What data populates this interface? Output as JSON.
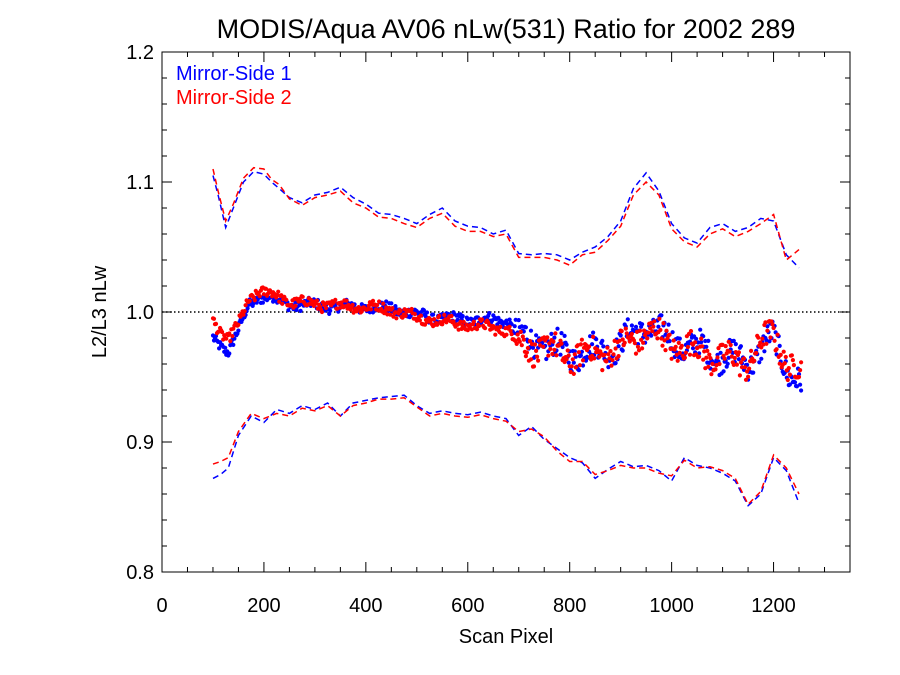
{
  "chart_data": {
    "type": "line",
    "title": "MODIS/Aqua AV06 nLw(531) Ratio for 2002 289",
    "xlabel": "Scan Pixel",
    "ylabel": "L2/L3 nLw",
    "xlim": [
      0,
      1350
    ],
    "ylim": [
      0.8,
      1.2
    ],
    "x_ticks": [
      0,
      200,
      400,
      600,
      800,
      1000,
      1200
    ],
    "y_ticks": [
      0.8,
      0.9,
      1.0,
      1.1,
      1.2
    ],
    "reference_line": 1.0,
    "legend_position": "top-left",
    "colors": {
      "ms1": "#0000ff",
      "ms2": "#ff0000",
      "reference": "#000000"
    },
    "series": [
      {
        "name": "Mirror-Side 1",
        "color": "#0000ff",
        "mean_x": [
          100,
          115,
          130,
          150,
          170,
          190,
          200,
          220,
          250,
          300,
          350,
          400,
          450,
          500,
          550,
          600,
          650,
          680,
          700,
          750,
          800,
          850,
          900,
          950,
          1000,
          1050,
          1100,
          1150,
          1200,
          1230,
          1255
        ],
        "mean_y": [
          0.98,
          0.975,
          0.97,
          0.985,
          1.005,
          1.012,
          1.012,
          1.01,
          1.006,
          1.005,
          1.004,
          1.004,
          1.003,
          0.998,
          0.995,
          0.994,
          0.994,
          0.993,
          0.98,
          0.975,
          0.968,
          0.97,
          0.975,
          0.99,
          0.978,
          0.972,
          0.966,
          0.962,
          0.98,
          0.955,
          0.942
        ],
        "upper_x": [
          100,
          110,
          125,
          140,
          160,
          180,
          200,
          215,
          230,
          250,
          275,
          300,
          325,
          350,
          375,
          400,
          425,
          450,
          475,
          500,
          525,
          550,
          575,
          600,
          625,
          650,
          675,
          700,
          725,
          750,
          775,
          800,
          825,
          850,
          875,
          900,
          925,
          950,
          975,
          1000,
          1025,
          1050,
          1075,
          1100,
          1125,
          1150,
          1175,
          1200,
          1225,
          1250
        ],
        "upper_y": [
          1.105,
          1.09,
          1.065,
          1.08,
          1.1,
          1.108,
          1.106,
          1.1,
          1.095,
          1.088,
          1.084,
          1.09,
          1.092,
          1.096,
          1.088,
          1.083,
          1.076,
          1.075,
          1.072,
          1.068,
          1.075,
          1.08,
          1.07,
          1.066,
          1.065,
          1.06,
          1.063,
          1.045,
          1.044,
          1.045,
          1.044,
          1.04,
          1.046,
          1.05,
          1.058,
          1.07,
          1.095,
          1.107,
          1.093,
          1.068,
          1.057,
          1.053,
          1.065,
          1.068,
          1.062,
          1.065,
          1.072,
          1.07,
          1.044,
          1.034
        ],
        "lower_x": [
          100,
          115,
          130,
          150,
          175,
          200,
          225,
          250,
          275,
          300,
          325,
          350,
          375,
          400,
          425,
          450,
          475,
          500,
          525,
          550,
          575,
          600,
          625,
          650,
          675,
          700,
          725,
          750,
          775,
          800,
          825,
          850,
          875,
          900,
          925,
          950,
          975,
          1000,
          1025,
          1050,
          1075,
          1100,
          1125,
          1150,
          1175,
          1200,
          1225,
          1250
        ],
        "lower_y": [
          0.872,
          0.875,
          0.88,
          0.905,
          0.92,
          0.915,
          0.925,
          0.922,
          0.928,
          0.925,
          0.93,
          0.92,
          0.93,
          0.932,
          0.934,
          0.935,
          0.936,
          0.928,
          0.922,
          0.924,
          0.922,
          0.921,
          0.923,
          0.92,
          0.918,
          0.905,
          0.912,
          0.902,
          0.895,
          0.888,
          0.884,
          0.872,
          0.879,
          0.885,
          0.881,
          0.882,
          0.878,
          0.87,
          0.888,
          0.882,
          0.88,
          0.876,
          0.87,
          0.851,
          0.86,
          0.888,
          0.878,
          0.853
        ]
      },
      {
        "name": "Mirror-Side 2",
        "color": "#ff0000",
        "mean_x": [
          100,
          115,
          130,
          150,
          170,
          190,
          200,
          220,
          250,
          300,
          350,
          400,
          450,
          500,
          550,
          600,
          650,
          680,
          700,
          750,
          800,
          850,
          900,
          950,
          1000,
          1050,
          1100,
          1150,
          1200,
          1230,
          1255
        ],
        "mean_y": [
          0.995,
          0.985,
          0.978,
          0.99,
          1.01,
          1.016,
          1.015,
          1.013,
          1.008,
          1.006,
          1.005,
          1.004,
          1.002,
          0.996,
          0.993,
          0.99,
          0.988,
          0.986,
          0.975,
          0.972,
          0.966,
          0.968,
          0.972,
          0.986,
          0.976,
          0.97,
          0.964,
          0.962,
          0.985,
          0.958,
          0.95
        ],
        "upper_x": [
          100,
          110,
          125,
          140,
          160,
          180,
          200,
          215,
          230,
          250,
          275,
          300,
          325,
          350,
          375,
          400,
          425,
          450,
          475,
          500,
          525,
          550,
          575,
          600,
          625,
          650,
          675,
          700,
          725,
          750,
          775,
          800,
          825,
          850,
          875,
          900,
          925,
          950,
          975,
          1000,
          1025,
          1050,
          1075,
          1100,
          1125,
          1150,
          1175,
          1200,
          1225,
          1250
        ],
        "upper_y": [
          1.11,
          1.093,
          1.07,
          1.083,
          1.103,
          1.111,
          1.11,
          1.102,
          1.098,
          1.087,
          1.082,
          1.088,
          1.09,
          1.093,
          1.084,
          1.08,
          1.073,
          1.072,
          1.068,
          1.065,
          1.072,
          1.076,
          1.066,
          1.062,
          1.062,
          1.058,
          1.06,
          1.042,
          1.042,
          1.042,
          1.04,
          1.036,
          1.044,
          1.046,
          1.055,
          1.066,
          1.09,
          1.1,
          1.09,
          1.064,
          1.054,
          1.05,
          1.06,
          1.064,
          1.058,
          1.062,
          1.068,
          1.075,
          1.04,
          1.048
        ],
        "lower_x": [
          100,
          115,
          130,
          150,
          175,
          200,
          225,
          250,
          275,
          300,
          325,
          350,
          375,
          400,
          425,
          450,
          475,
          500,
          525,
          550,
          575,
          600,
          625,
          650,
          675,
          700,
          725,
          750,
          775,
          800,
          825,
          850,
          875,
          900,
          925,
          950,
          975,
          1000,
          1025,
          1050,
          1075,
          1100,
          1125,
          1150,
          1175,
          1200,
          1225,
          1250
        ],
        "lower_y": [
          0.883,
          0.885,
          0.888,
          0.908,
          0.922,
          0.918,
          0.922,
          0.92,
          0.926,
          0.924,
          0.928,
          0.92,
          0.928,
          0.93,
          0.933,
          0.933,
          0.934,
          0.927,
          0.92,
          0.922,
          0.92,
          0.919,
          0.921,
          0.918,
          0.916,
          0.908,
          0.91,
          0.904,
          0.893,
          0.885,
          0.885,
          0.875,
          0.878,
          0.882,
          0.88,
          0.88,
          0.876,
          0.874,
          0.886,
          0.88,
          0.881,
          0.878,
          0.872,
          0.852,
          0.862,
          0.89,
          0.88,
          0.86
        ]
      }
    ]
  }
}
